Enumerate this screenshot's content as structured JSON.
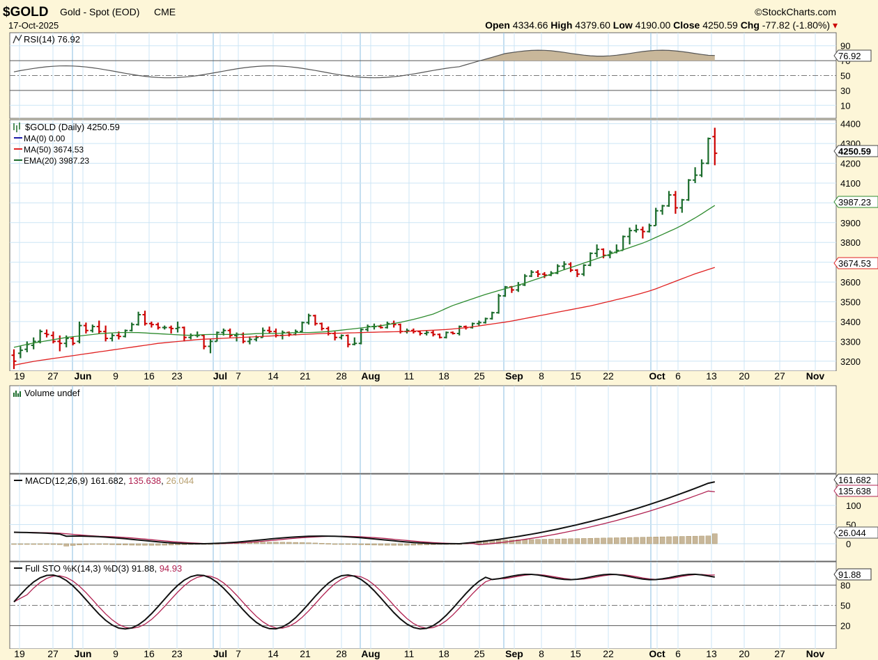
{
  "header": {
    "symbol": "$GOLD",
    "name": "Gold - Spot (EOD)",
    "exchange": "CME",
    "date": "17-Oct-2025",
    "brand": "©StockCharts.com",
    "open_label": "Open",
    "open": "4334.66",
    "high_label": "High",
    "high": "4379.60",
    "low_label": "Low",
    "low": "4190.00",
    "close_label": "Close",
    "close": "4250.59",
    "chg_label": "Chg",
    "chg": "-77.82 (-1.80%)"
  },
  "panels": {
    "rsi": {
      "legend": "RSI(14) 76.92",
      "last": "76.92",
      "ticks": [
        "90",
        "70",
        "50",
        "30",
        "10"
      ]
    },
    "price": {
      "legend_main": "$GOLD (Daily) 4250.59",
      "legend_ma0": "MA(0) 0.00",
      "legend_ma50": "MA(50) 3674.53",
      "legend_ema20": "EMA(20) 3987.23",
      "last_price": "4250.59",
      "last_ema": "3987.23",
      "last_ma": "3674.53"
    },
    "volume": {
      "legend": "Volume undef"
    },
    "macd": {
      "legend_prefix": "MACD(12,26,9)",
      "macd": "161.682",
      "signal": "135.638",
      "hist": "26.044",
      "ticks": [
        "100",
        "50",
        "0"
      ]
    },
    "sto": {
      "legend_prefix": "Full STO %K(14,3) %D(3)",
      "k": "91.88",
      "d": "94.93",
      "ticks": [
        "80",
        "50",
        "20"
      ]
    }
  },
  "colors": {
    "background": "#fdf6d8",
    "plot": "#ffffff",
    "grid": "#cce5f5",
    "up": "#1a6b2a",
    "down": "#cc0000",
    "ema": "#2e8b2e",
    "ma": "#e02020",
    "ma0": "#1a1aa8",
    "macd_signal": "#b02050",
    "hist": "#c8b79a",
    "rsi_fill": "#c8b79a"
  },
  "chart_data": {
    "type": "line",
    "x_axis_labels": [
      "19",
      "27",
      "Jun",
      "9",
      "16",
      "23",
      "Jul",
      "7",
      "14",
      "21",
      "28",
      "Aug",
      "11",
      "18",
      "25",
      "Sep",
      "8",
      "15",
      "22",
      "Oct",
      "6",
      "13",
      "20",
      "27",
      "Nov"
    ],
    "price_axis": {
      "ticks": [
        "4400",
        "4300",
        "4200",
        "4100",
        "4000",
        "3900",
        "3800",
        "3700",
        "3600",
        "3500",
        "3400",
        "3300",
        "3200"
      ],
      "ylim": [
        3150,
        4420
      ]
    },
    "price_ohlc": [
      {
        "x": "May 19",
        "o": 3230,
        "h": 3260,
        "l": 3160,
        "c": 3200
      },
      {
        "x": "May 20",
        "o": 3240,
        "h": 3275,
        "l": 3215,
        "c": 3255
      },
      {
        "x": "May 21",
        "o": 3260,
        "h": 3300,
        "l": 3245,
        "c": 3285
      },
      {
        "x": "May 22",
        "o": 3280,
        "h": 3320,
        "l": 3260,
        "c": 3300
      },
      {
        "x": "May 23",
        "o": 3300,
        "h": 3360,
        "l": 3290,
        "c": 3350
      },
      {
        "x": "May 26",
        "o": 3340,
        "h": 3360,
        "l": 3320,
        "c": 3335
      },
      {
        "x": "May 27",
        "o": 3330,
        "h": 3350,
        "l": 3290,
        "c": 3300
      },
      {
        "x": "May 28",
        "o": 3300,
        "h": 3330,
        "l": 3250,
        "c": 3290
      },
      {
        "x": "May 29",
        "o": 3290,
        "h": 3330,
        "l": 3270,
        "c": 3315
      },
      {
        "x": "May 30",
        "o": 3315,
        "h": 3325,
        "l": 3280,
        "c": 3290
      },
      {
        "x": "Jun 2",
        "o": 3300,
        "h": 3400,
        "l": 3290,
        "c": 3380
      },
      {
        "x": "Jun 3",
        "o": 3380,
        "h": 3395,
        "l": 3340,
        "c": 3355
      },
      {
        "x": "Jun 4",
        "o": 3355,
        "h": 3385,
        "l": 3345,
        "c": 3375
      },
      {
        "x": "Jun 5",
        "o": 3375,
        "h": 3405,
        "l": 3340,
        "c": 3350
      },
      {
        "x": "Jun 6",
        "o": 3350,
        "h": 3380,
        "l": 3300,
        "c": 3315
      },
      {
        "x": "Jun 9",
        "o": 3315,
        "h": 3340,
        "l": 3300,
        "c": 3330
      },
      {
        "x": "Jun 10",
        "o": 3330,
        "h": 3350,
        "l": 3310,
        "c": 3325
      },
      {
        "x": "Jun 11",
        "o": 3325,
        "h": 3360,
        "l": 3320,
        "c": 3355
      },
      {
        "x": "Jun 12",
        "o": 3355,
        "h": 3395,
        "l": 3350,
        "c": 3385
      },
      {
        "x": "Jun 13",
        "o": 3385,
        "h": 3450,
        "l": 3380,
        "c": 3435
      },
      {
        "x": "Jun 16",
        "o": 3435,
        "h": 3455,
        "l": 3380,
        "c": 3390
      },
      {
        "x": "Jun 17",
        "o": 3390,
        "h": 3400,
        "l": 3370,
        "c": 3385
      },
      {
        "x": "Jun 18",
        "o": 3385,
        "h": 3395,
        "l": 3360,
        "c": 3370
      },
      {
        "x": "Jun 19",
        "o": 3370,
        "h": 3380,
        "l": 3360,
        "c": 3370
      },
      {
        "x": "Jun 20",
        "o": 3370,
        "h": 3380,
        "l": 3340,
        "c": 3365
      },
      {
        "x": "Jun 23",
        "o": 3365,
        "h": 3400,
        "l": 3345,
        "c": 3370
      },
      {
        "x": "Jun 24",
        "o": 3370,
        "h": 3375,
        "l": 3300,
        "c": 3320
      },
      {
        "x": "Jun 25",
        "o": 3320,
        "h": 3340,
        "l": 3310,
        "c": 3330
      },
      {
        "x": "Jun 26",
        "o": 3330,
        "h": 3350,
        "l": 3320,
        "c": 3330
      },
      {
        "x": "Jun 27",
        "o": 3330,
        "h": 3335,
        "l": 3260,
        "c": 3275
      },
      {
        "x": "Jun 30",
        "o": 3275,
        "h": 3310,
        "l": 3240,
        "c": 3300
      },
      {
        "x": "Jul 1",
        "o": 3300,
        "h": 3350,
        "l": 3300,
        "c": 3345
      },
      {
        "x": "Jul 2",
        "o": 3345,
        "h": 3365,
        "l": 3330,
        "c": 3355
      },
      {
        "x": "Jul 3",
        "o": 3355,
        "h": 3365,
        "l": 3320,
        "c": 3330
      },
      {
        "x": "Jul 7",
        "o": 3330,
        "h": 3345,
        "l": 3300,
        "c": 3335
      },
      {
        "x": "Jul 8",
        "o": 3335,
        "h": 3345,
        "l": 3290,
        "c": 3300
      },
      {
        "x": "Jul 9",
        "o": 3300,
        "h": 3325,
        "l": 3285,
        "c": 3310
      },
      {
        "x": "Jul 10",
        "o": 3310,
        "h": 3330,
        "l": 3300,
        "c": 3320
      },
      {
        "x": "Jul 11",
        "o": 3320,
        "h": 3370,
        "l": 3320,
        "c": 3355
      },
      {
        "x": "Jul 14",
        "o": 3355,
        "h": 3375,
        "l": 3340,
        "c": 3350
      },
      {
        "x": "Jul 15",
        "o": 3350,
        "h": 3365,
        "l": 3320,
        "c": 3330
      },
      {
        "x": "Jul 16",
        "o": 3330,
        "h": 3355,
        "l": 3310,
        "c": 3345
      },
      {
        "x": "Jul 17",
        "o": 3345,
        "h": 3350,
        "l": 3325,
        "c": 3335
      },
      {
        "x": "Jul 18",
        "o": 3335,
        "h": 3360,
        "l": 3330,
        "c": 3350
      },
      {
        "x": "Jul 21",
        "o": 3350,
        "h": 3400,
        "l": 3345,
        "c": 3395
      },
      {
        "x": "Jul 22",
        "o": 3395,
        "h": 3440,
        "l": 3385,
        "c": 3430
      },
      {
        "x": "Jul 23",
        "o": 3430,
        "h": 3435,
        "l": 3380,
        "c": 3390
      },
      {
        "x": "Jul 24",
        "o": 3390,
        "h": 3395,
        "l": 3355,
        "c": 3365
      },
      {
        "x": "Jul 25",
        "o": 3365,
        "h": 3375,
        "l": 3330,
        "c": 3340
      },
      {
        "x": "Jul 28",
        "o": 3340,
        "h": 3350,
        "l": 3305,
        "c": 3320
      },
      {
        "x": "Jul 29",
        "o": 3320,
        "h": 3335,
        "l": 3310,
        "c": 3330
      },
      {
        "x": "Jul 30",
        "o": 3330,
        "h": 3335,
        "l": 3270,
        "c": 3285
      },
      {
        "x": "Jul 31",
        "o": 3285,
        "h": 3320,
        "l": 3280,
        "c": 3290
      },
      {
        "x": "Aug 1",
        "o": 3290,
        "h": 3365,
        "l": 3285,
        "c": 3360
      },
      {
        "x": "Aug 4",
        "o": 3360,
        "h": 3385,
        "l": 3350,
        "c": 3375
      },
      {
        "x": "Aug 5",
        "o": 3375,
        "h": 3390,
        "l": 3360,
        "c": 3375
      },
      {
        "x": "Aug 6",
        "o": 3375,
        "h": 3385,
        "l": 3365,
        "c": 3370
      },
      {
        "x": "Aug 7",
        "o": 3370,
        "h": 3400,
        "l": 3365,
        "c": 3390
      },
      {
        "x": "Aug 8",
        "o": 3390,
        "h": 3405,
        "l": 3370,
        "c": 3385
      },
      {
        "x": "Aug 11",
        "o": 3385,
        "h": 3390,
        "l": 3340,
        "c": 3350
      },
      {
        "x": "Aug 12",
        "o": 3350,
        "h": 3365,
        "l": 3340,
        "c": 3355
      },
      {
        "x": "Aug 13",
        "o": 3355,
        "h": 3365,
        "l": 3340,
        "c": 3350
      },
      {
        "x": "Aug 14",
        "o": 3350,
        "h": 3355,
        "l": 3330,
        "c": 3340
      },
      {
        "x": "Aug 15",
        "o": 3340,
        "h": 3355,
        "l": 3330,
        "c": 3345
      },
      {
        "x": "Aug 18",
        "o": 3345,
        "h": 3355,
        "l": 3325,
        "c": 3335
      },
      {
        "x": "Aug 19",
        "o": 3335,
        "h": 3340,
        "l": 3315,
        "c": 3320
      },
      {
        "x": "Aug 20",
        "o": 3320,
        "h": 3350,
        "l": 3315,
        "c": 3345
      },
      {
        "x": "Aug 21",
        "o": 3345,
        "h": 3350,
        "l": 3335,
        "c": 3340
      },
      {
        "x": "Aug 22",
        "o": 3340,
        "h": 3380,
        "l": 3330,
        "c": 3375
      },
      {
        "x": "Aug 25",
        "o": 3375,
        "h": 3380,
        "l": 3360,
        "c": 3370
      },
      {
        "x": "Aug 26",
        "o": 3370,
        "h": 3395,
        "l": 3365,
        "c": 3390
      },
      {
        "x": "Aug 27",
        "o": 3390,
        "h": 3405,
        "l": 3380,
        "c": 3395
      },
      {
        "x": "Aug 28",
        "o": 3395,
        "h": 3420,
        "l": 3390,
        "c": 3415
      },
      {
        "x": "Aug 29",
        "o": 3415,
        "h": 3450,
        "l": 3410,
        "c": 3445
      },
      {
        "x": "Sep 2",
        "o": 3445,
        "h": 3540,
        "l": 3440,
        "c": 3530
      },
      {
        "x": "Sep 3",
        "o": 3530,
        "h": 3580,
        "l": 3525,
        "c": 3575
      },
      {
        "x": "Sep 4",
        "o": 3575,
        "h": 3580,
        "l": 3545,
        "c": 3560
      },
      {
        "x": "Sep 5",
        "o": 3560,
        "h": 3600,
        "l": 3550,
        "c": 3585
      },
      {
        "x": "Sep 8",
        "o": 3585,
        "h": 3640,
        "l": 3580,
        "c": 3630
      },
      {
        "x": "Sep 9",
        "o": 3630,
        "h": 3660,
        "l": 3625,
        "c": 3650
      },
      {
        "x": "Sep 10",
        "o": 3650,
        "h": 3660,
        "l": 3625,
        "c": 3640
      },
      {
        "x": "Sep 11",
        "o": 3640,
        "h": 3650,
        "l": 3620,
        "c": 3635
      },
      {
        "x": "Sep 12",
        "o": 3635,
        "h": 3655,
        "l": 3630,
        "c": 3645
      },
      {
        "x": "Sep 15",
        "o": 3645,
        "h": 3690,
        "l": 3640,
        "c": 3680
      },
      {
        "x": "Sep 16",
        "o": 3680,
        "h": 3705,
        "l": 3660,
        "c": 3690
      },
      {
        "x": "Sep 17",
        "o": 3690,
        "h": 3700,
        "l": 3650,
        "c": 3660
      },
      {
        "x": "Sep 18",
        "o": 3660,
        "h": 3665,
        "l": 3625,
        "c": 3640
      },
      {
        "x": "Sep 19",
        "o": 3640,
        "h": 3690,
        "l": 3630,
        "c": 3685
      },
      {
        "x": "Sep 22",
        "o": 3685,
        "h": 3750,
        "l": 3680,
        "c": 3745
      },
      {
        "x": "Sep 23",
        "o": 3745,
        "h": 3790,
        "l": 3725,
        "c": 3765
      },
      {
        "x": "Sep 24",
        "o": 3765,
        "h": 3770,
        "l": 3720,
        "c": 3735
      },
      {
        "x": "Sep 25",
        "o": 3735,
        "h": 3760,
        "l": 3720,
        "c": 3750
      },
      {
        "x": "Sep 26",
        "o": 3750,
        "h": 3790,
        "l": 3745,
        "c": 3760
      },
      {
        "x": "Sep 29",
        "o": 3760,
        "h": 3835,
        "l": 3760,
        "c": 3830
      },
      {
        "x": "Sep 30",
        "o": 3830,
        "h": 3875,
        "l": 3790,
        "c": 3860
      },
      {
        "x": "Oct 1",
        "o": 3860,
        "h": 3890,
        "l": 3850,
        "c": 3865
      },
      {
        "x": "Oct 2",
        "o": 3865,
        "h": 3880,
        "l": 3820,
        "c": 3855
      },
      {
        "x": "Oct 3",
        "o": 3855,
        "h": 3895,
        "l": 3850,
        "c": 3885
      },
      {
        "x": "Oct 6",
        "o": 3885,
        "h": 3975,
        "l": 3885,
        "c": 3960
      },
      {
        "x": "Oct 7",
        "o": 3960,
        "h": 3990,
        "l": 3940,
        "c": 3985
      },
      {
        "x": "Oct 8",
        "o": 3985,
        "h": 4060,
        "l": 3980,
        "c": 4040
      },
      {
        "x": "Oct 9",
        "o": 4040,
        "h": 4060,
        "l": 3945,
        "c": 3975
      },
      {
        "x": "Oct 10",
        "o": 3975,
        "h": 4020,
        "l": 3950,
        "c": 4015
      },
      {
        "x": "Oct 13",
        "o": 4015,
        "h": 4120,
        "l": 4010,
        "c": 4115
      },
      {
        "x": "Oct 14",
        "o": 4115,
        "h": 4180,
        "l": 4100,
        "c": 4140
      },
      {
        "x": "Oct 15",
        "o": 4140,
        "h": 4220,
        "l": 4130,
        "c": 4200
      },
      {
        "x": "Oct 16",
        "o": 4200,
        "h": 4330,
        "l": 4195,
        "c": 4325
      },
      {
        "x": "Oct 17",
        "o": 4334.66,
        "h": 4379.6,
        "l": 4190.0,
        "c": 4250.59
      }
    ],
    "series": [
      {
        "name": "EMA(20)",
        "last": 3987.23,
        "values_approx": [
          3270,
          3290,
          3305,
          3320,
          3330,
          3340,
          3345,
          3345,
          3340,
          3335,
          3330,
          3335,
          3335,
          3335,
          3340,
          3340,
          3345,
          3345,
          3350,
          3360,
          3370,
          3380,
          3395,
          3415,
          3440,
          3480,
          3510,
          3540,
          3565,
          3590,
          3620,
          3650,
          3680,
          3710,
          3740,
          3770,
          3800,
          3840,
          3880,
          3930,
          3987
        ]
      },
      {
        "name": "MA(50)",
        "last": 3674.53,
        "values_approx": [
          3180,
          3200,
          3215,
          3230,
          3245,
          3260,
          3275,
          3290,
          3300,
          3310,
          3315,
          3320,
          3325,
          3330,
          3335,
          3340,
          3342,
          3345,
          3348,
          3350,
          3355,
          3360,
          3370,
          3385,
          3400,
          3420,
          3440,
          3460,
          3480,
          3505,
          3530,
          3560,
          3600,
          3640,
          3674
        ]
      },
      {
        "name": "RSI(14)",
        "last": 76.92
      },
      {
        "name": "MACD",
        "last": 161.682
      },
      {
        "name": "Signal",
        "last": 135.638
      },
      {
        "name": "Histogram",
        "last": 26.044
      },
      {
        "name": "%K",
        "last": 91.88
      },
      {
        "name": "%D",
        "last": 94.93
      }
    ]
  }
}
